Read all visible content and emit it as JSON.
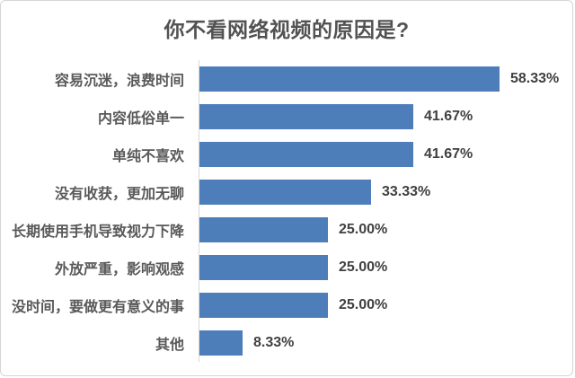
{
  "chart_data": {
    "type": "bar",
    "orientation": "horizontal",
    "title": "你不看网络视频的原因是?",
    "categories": [
      "容易沉迷，浪费时间",
      "内容低俗单一",
      "单纯不喜欢",
      "没有收获，更加无聊",
      "长期使用手机导致视力下降",
      "外放严重，影响观感",
      "没时间，要做更有意义的事",
      "其他"
    ],
    "values": [
      58.33,
      41.67,
      41.67,
      33.33,
      25.0,
      25.0,
      25.0,
      8.33
    ],
    "value_labels": [
      "58.33%",
      "41.67%",
      "41.67%",
      "33.33%",
      "25.00%",
      "25.00%",
      "25.00%",
      "8.33%"
    ],
    "xlim": [
      0,
      68
    ],
    "grid": false,
    "legend": "none",
    "data_label_position": "outside-end",
    "bar_color": "#4e7eba",
    "axis_line_color": "#d9d9d9",
    "category_label_color": "#595959",
    "value_label_color": "#404040",
    "title_color": "#525252",
    "background_color": "#ffffff",
    "border_color": "#d5d5d5"
  }
}
